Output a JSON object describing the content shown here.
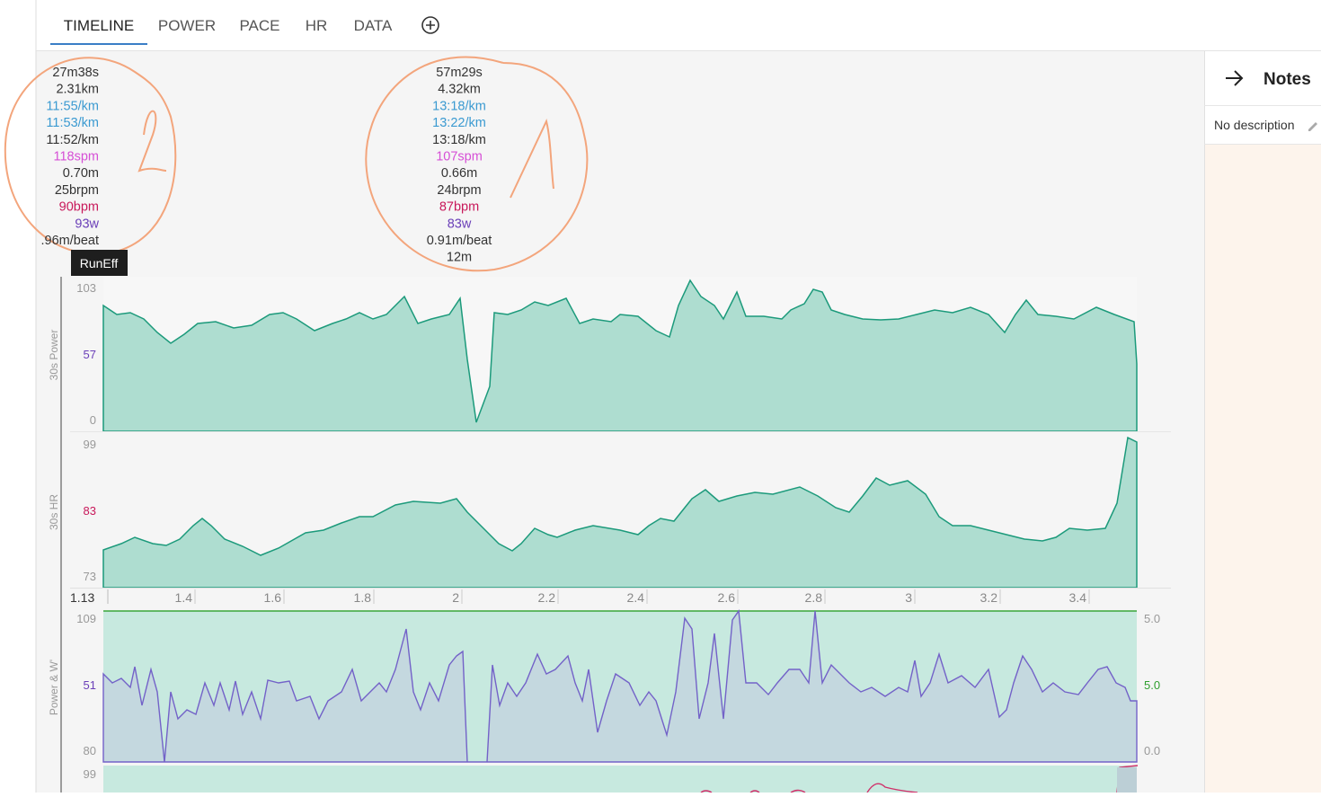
{
  "tabs": [
    "TIMELINE",
    "POWER",
    "PACE",
    "HR",
    "DATA"
  ],
  "stats_left": [
    {
      "text": "27m38s",
      "color": "#333333"
    },
    {
      "text": "2.31km",
      "color": "#333333"
    },
    {
      "text": "11:55/km",
      "color": "#3b9ad1"
    },
    {
      "text": "11:53/km",
      "color": "#3b9ad1"
    },
    {
      "text": "11:52/km",
      "color": "#333333"
    },
    {
      "text": "118spm",
      "color": "#d64fd6"
    },
    {
      "text": "0.70m",
      "color": "#333333"
    },
    {
      "text": "25brpm",
      "color": "#333333"
    },
    {
      "text": "90bpm",
      "color": "#c8185a"
    },
    {
      "text": "93w",
      "color": "#6a3fb8"
    },
    {
      "text": ".96m/beat",
      "color": "#333333"
    }
  ],
  "stats_center": [
    {
      "text": "57m29s",
      "color": "#333333"
    },
    {
      "text": "4.32km",
      "color": "#333333"
    },
    {
      "text": "13:18/km",
      "color": "#3b9ad1"
    },
    {
      "text": "13:22/km",
      "color": "#3b9ad1"
    },
    {
      "text": "13:18/km",
      "color": "#333333"
    },
    {
      "text": "107spm",
      "color": "#d64fd6"
    },
    {
      "text": "0.66m",
      "color": "#333333"
    },
    {
      "text": "24brpm",
      "color": "#333333"
    },
    {
      "text": "87bpm",
      "color": "#c8185a"
    },
    {
      "text": "83w",
      "color": "#6a3fb8"
    },
    {
      "text": "0.91m/beat",
      "color": "#333333"
    },
    {
      "text": "12m",
      "color": "#333333"
    }
  ],
  "tooltip": "RunEff",
  "panels": [
    {
      "name": "30s Power",
      "labels": [
        "103",
        "57",
        "0"
      ]
    },
    {
      "name": "30s HR",
      "labels": [
        "99",
        "83",
        "73"
      ]
    },
    {
      "name": "Power & W'",
      "labels": [
        "109",
        "51",
        "80"
      ],
      "right_labels": [
        "5.0",
        "5.0",
        "0.0"
      ]
    },
    {
      "labels": [
        "99"
      ]
    }
  ],
  "x_axis": {
    "start": "1.13",
    "labels": [
      "1.4",
      "1.6",
      "1.8",
      "2",
      "2.2",
      "2.4",
      "2.6",
      "2.8",
      "3",
      "3.2",
      "3.4"
    ]
  },
  "notes": {
    "title": "Notes",
    "description": "No description"
  }
}
